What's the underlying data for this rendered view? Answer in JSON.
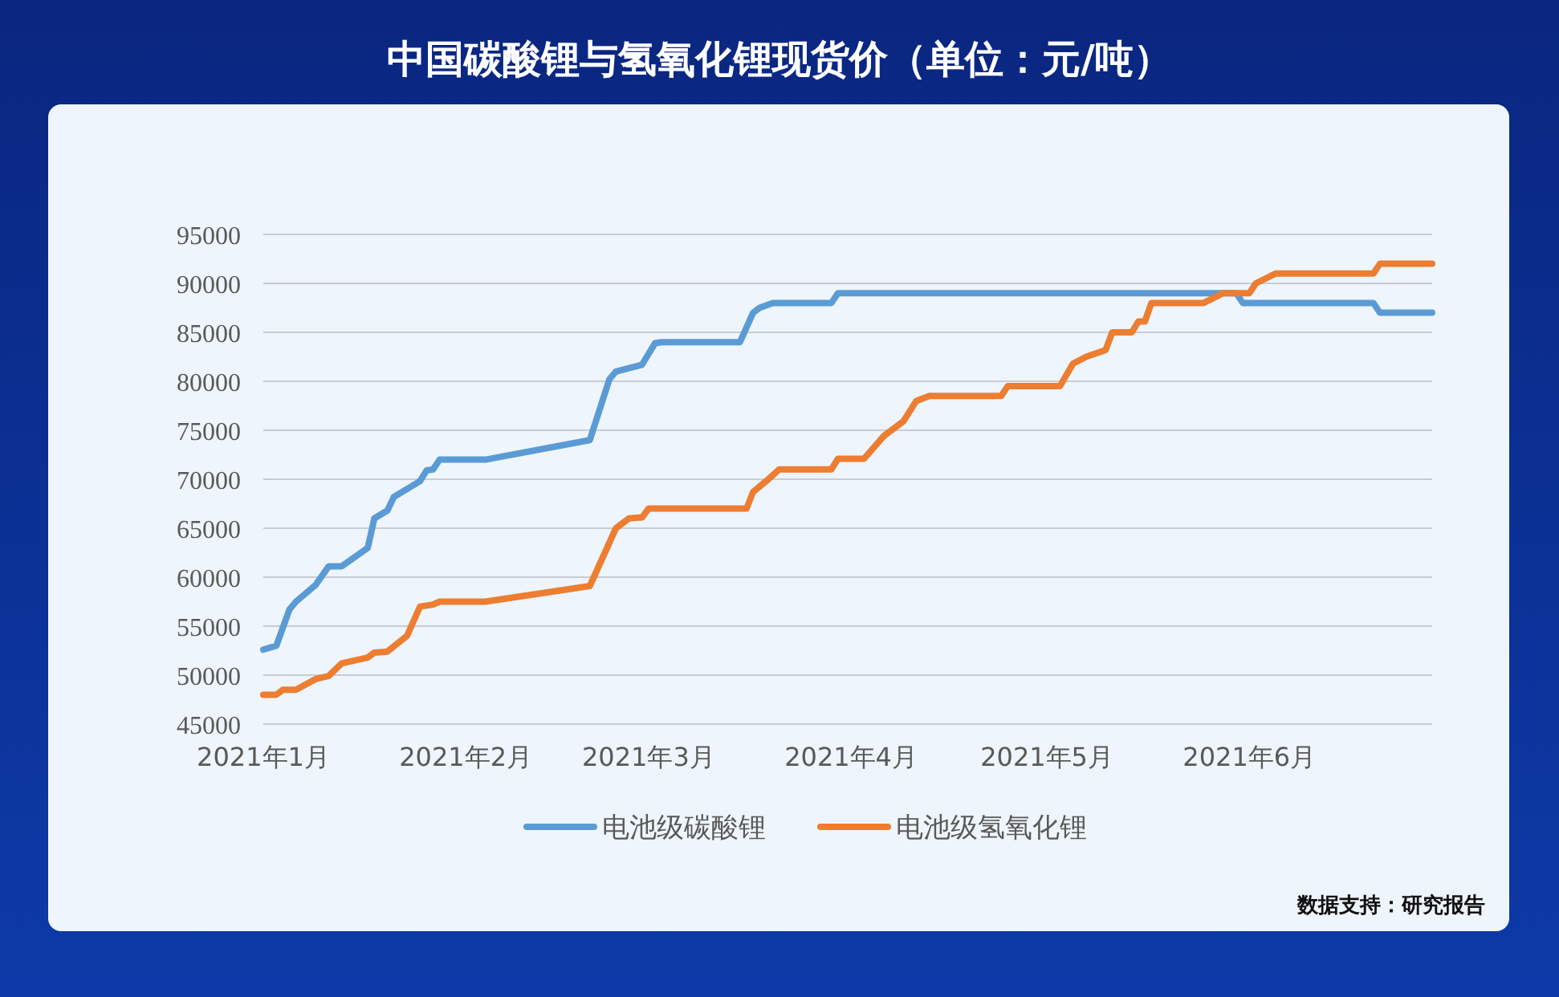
{
  "chart_data": {
    "type": "line",
    "title": "中国碳酸锂与氢氧化锂现货价（单位：元/吨）",
    "xlim": [
      "2021-01-01",
      "2021-06-29"
    ],
    "xticks": [
      {
        "value": "2021-01-01",
        "label": "2021年1月"
      },
      {
        "value": "2021-02-01",
        "label": "2021年2月"
      },
      {
        "value": "2021-03-01",
        "label": "2021年3月"
      },
      {
        "value": "2021-04-01",
        "label": "2021年4月"
      },
      {
        "value": "2021-05-01",
        "label": "2021年5月"
      },
      {
        "value": "2021-06-01",
        "label": "2021年6月"
      }
    ],
    "ylim": [
      45000,
      95000
    ],
    "yticks": [
      45000,
      50000,
      55000,
      60000,
      65000,
      70000,
      75000,
      80000,
      85000,
      90000,
      95000
    ],
    "grid": "y",
    "legend": "bottom",
    "line_style": "solid",
    "marker": "none",
    "series": [
      {
        "name": "电池级碳酸锂",
        "color": "#5b9bd5",
        "x": [
          "2021-01-01",
          "2021-01-03",
          "2021-01-05",
          "2021-01-06",
          "2021-01-09",
          "2021-01-11",
          "2021-01-13",
          "2021-01-17",
          "2021-01-18",
          "2021-01-20",
          "2021-01-21",
          "2021-01-25",
          "2021-01-26",
          "2021-01-27",
          "2021-01-28",
          "2021-02-04",
          "2021-02-20",
          "2021-02-23",
          "2021-02-24",
          "2021-02-28",
          "2021-03-02",
          "2021-03-03",
          "2021-03-15",
          "2021-03-17",
          "2021-03-18",
          "2021-03-20",
          "2021-03-29",
          "2021-03-30",
          "2021-05-30",
          "2021-05-31",
          "2021-06-20",
          "2021-06-21",
          "2021-06-29"
        ],
        "values": [
          52600,
          53000,
          56700,
          57500,
          59200,
          61100,
          61100,
          63000,
          66000,
          66800,
          68200,
          69800,
          70900,
          71000,
          72000,
          72000,
          74000,
          80200,
          81000,
          81700,
          83900,
          84000,
          84000,
          87000,
          87500,
          88000,
          88000,
          89000,
          89000,
          88000,
          88000,
          87000,
          87000
        ]
      },
      {
        "name": "电池级氢氧化锂",
        "color": "#ed7d31",
        "x": [
          "2021-01-01",
          "2021-01-03",
          "2021-01-04",
          "2021-01-06",
          "2021-01-09",
          "2021-01-11",
          "2021-01-13",
          "2021-01-17",
          "2021-01-18",
          "2021-01-20",
          "2021-01-23",
          "2021-01-25",
          "2021-01-27",
          "2021-01-28",
          "2021-02-04",
          "2021-02-20",
          "2021-02-24",
          "2021-02-26",
          "2021-02-28",
          "2021-03-01",
          "2021-03-16",
          "2021-03-17",
          "2021-03-19",
          "2021-03-21",
          "2021-03-29",
          "2021-03-30",
          "2021-04-03",
          "2021-04-06",
          "2021-04-09",
          "2021-04-11",
          "2021-04-13",
          "2021-04-24",
          "2021-04-25",
          "2021-05-03",
          "2021-05-05",
          "2021-05-07",
          "2021-05-10",
          "2021-05-11",
          "2021-05-14",
          "2021-05-15",
          "2021-05-16",
          "2021-05-17",
          "2021-05-25",
          "2021-05-28",
          "2021-06-01",
          "2021-06-02",
          "2021-06-05",
          "2021-06-20",
          "2021-06-21",
          "2021-06-29"
        ],
        "values": [
          48000,
          48000,
          48500,
          48500,
          49600,
          49900,
          51200,
          51800,
          52300,
          52400,
          54000,
          57000,
          57200,
          57500,
          57500,
          59100,
          65000,
          66000,
          66100,
          67000,
          67000,
          68700,
          69800,
          71000,
          71000,
          72100,
          72100,
          74400,
          75900,
          78000,
          78500,
          78500,
          79500,
          79500,
          81800,
          82500,
          83200,
          85000,
          85000,
          86100,
          86100,
          88000,
          88000,
          89000,
          89000,
          90000,
          91000,
          91000,
          92000,
          92000
        ]
      }
    ],
    "annotations": [
      "数据支持：研究报告"
    ]
  }
}
